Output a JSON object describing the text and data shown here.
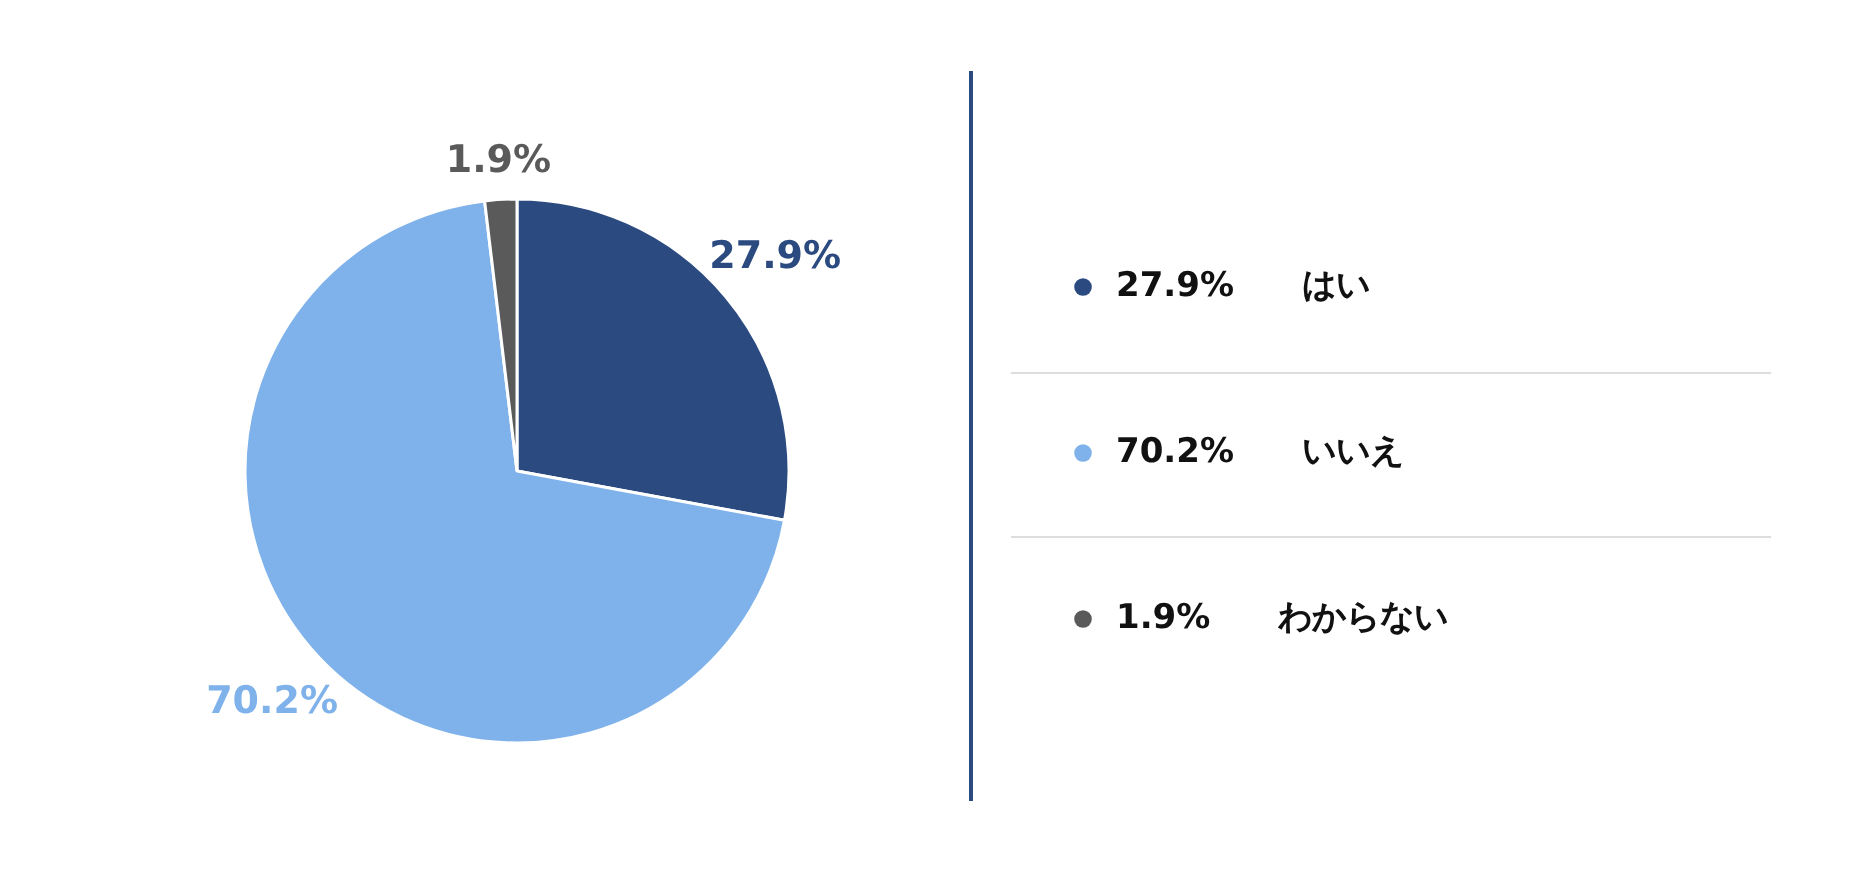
{
  "chart_data": {
    "type": "pie",
    "categories": [
      "はい",
      "いいえ",
      "わからない"
    ],
    "values": [
      27.9,
      70.2,
      1.9
    ],
    "colors": [
      "#2b4a80",
      "#7fb2ea",
      "#5a5a5a"
    ],
    "value_labels": [
      "27.9%",
      "70.2%",
      "1.9%"
    ],
    "legend": "right"
  }
}
